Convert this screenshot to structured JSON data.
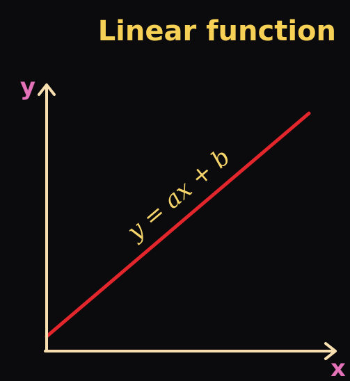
{
  "title": "Linear function",
  "axes": {
    "x_label": "x",
    "y_label": "y"
  },
  "line": {
    "equation": "y = ax + b"
  },
  "colors": {
    "background": "#0b0a0d",
    "title": "#f6d155",
    "axis": "#f7dfb0",
    "axis_label": "#e472b8",
    "line": "#e3262c",
    "equation": "#f6d56a"
  },
  "arrow_icons": [
    "up-arrow-icon",
    "right-arrow-icon"
  ]
}
